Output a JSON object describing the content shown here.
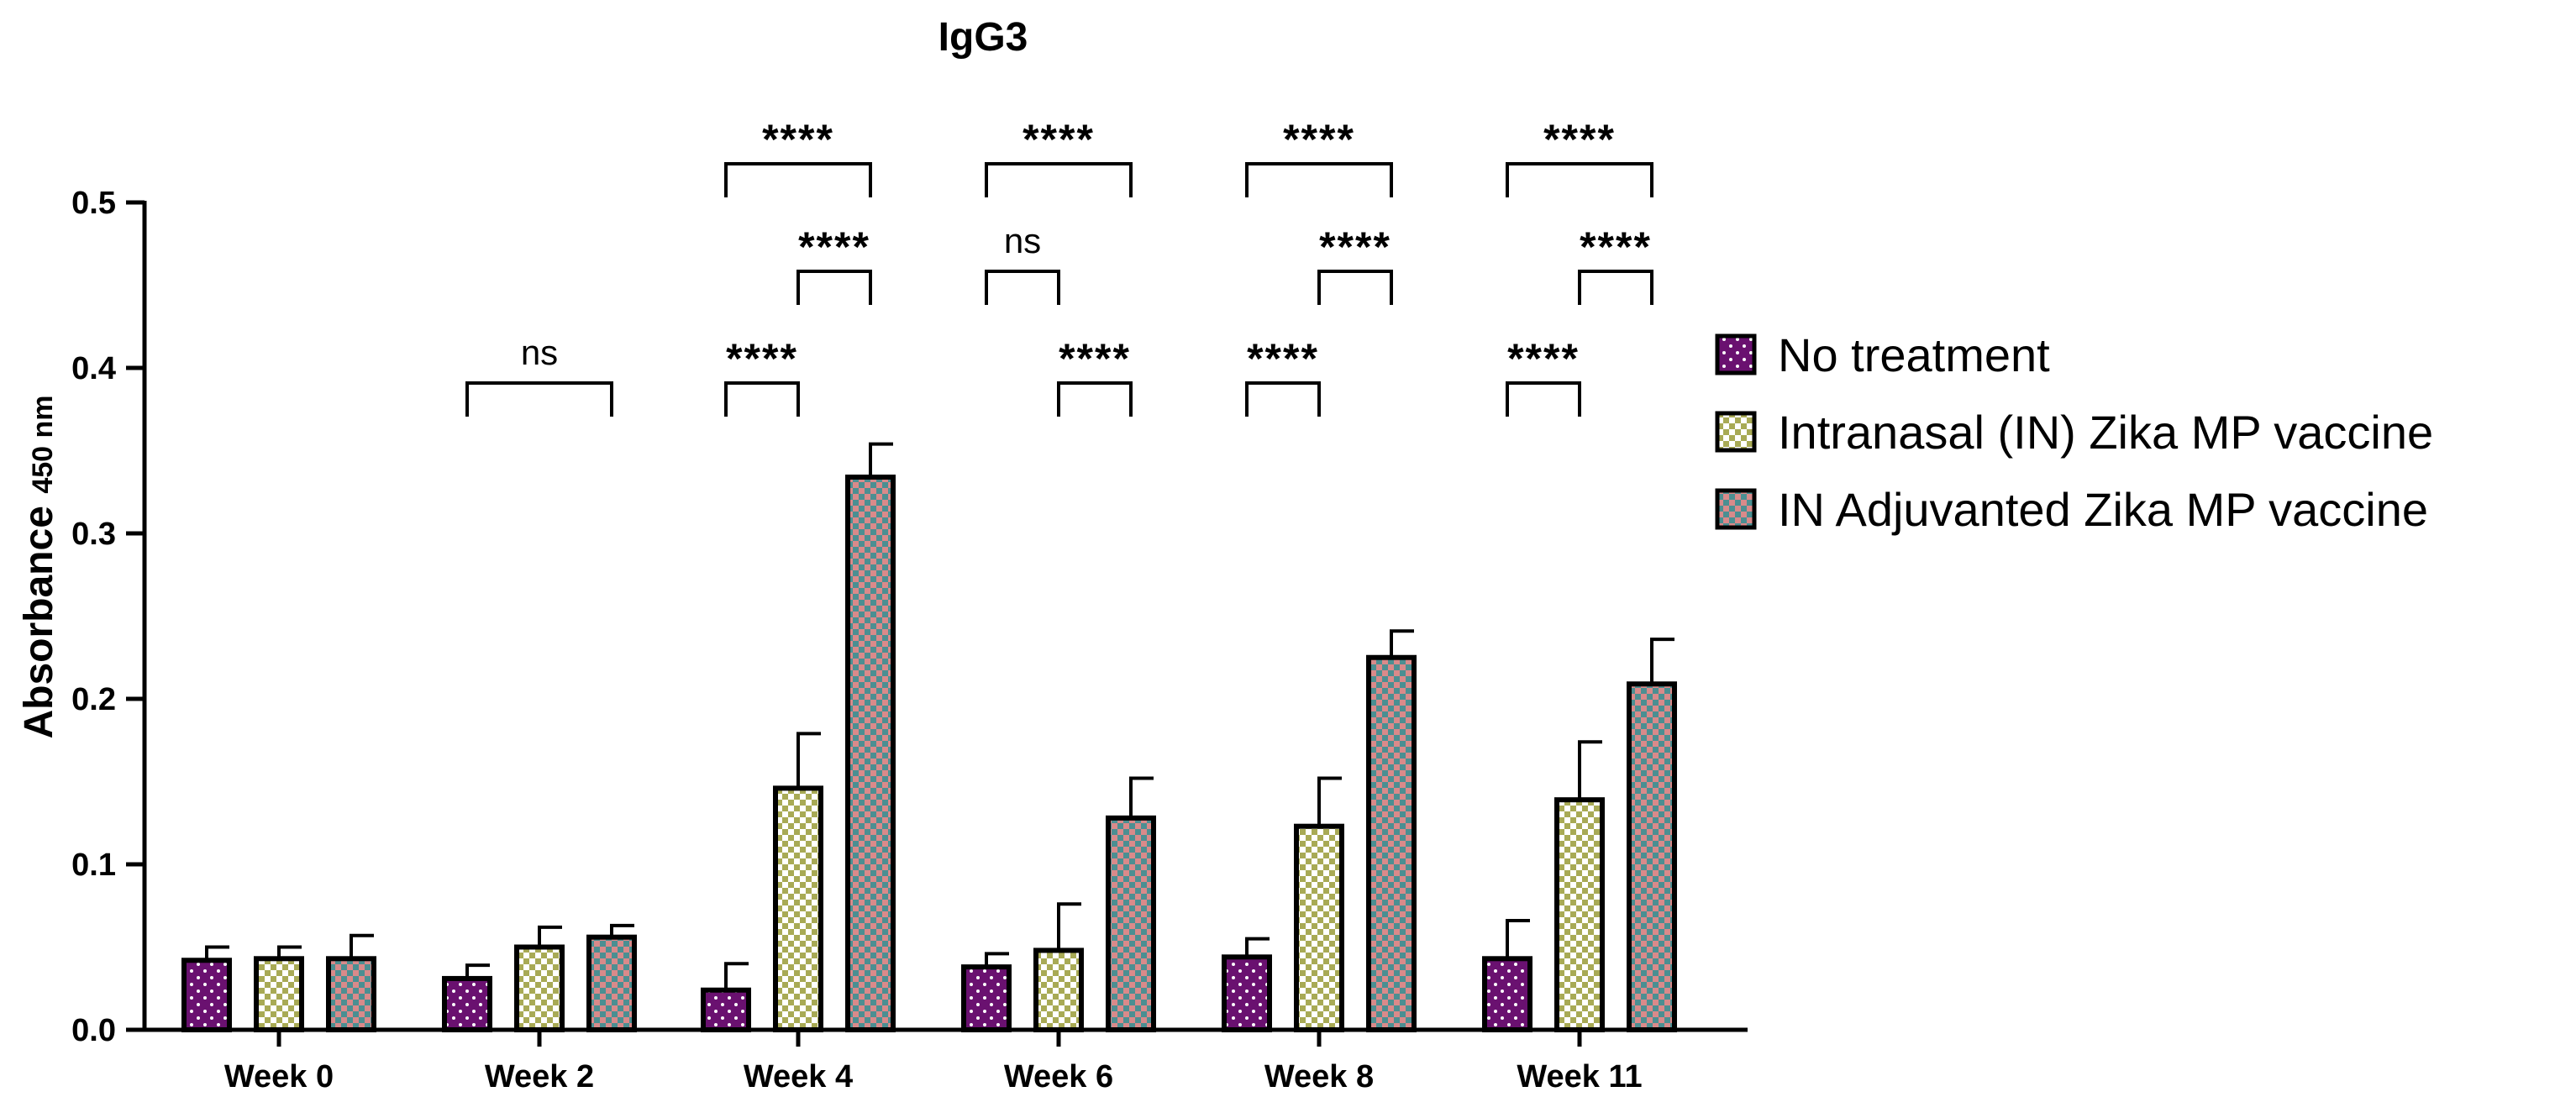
{
  "chart_data": {
    "type": "bar",
    "title": "IgG3",
    "ylabel": "Absorbance",
    "ylabel_subscript": "450 nm",
    "xlabel": "",
    "ylim": [
      0,
      0.5
    ],
    "yticks": [
      "0.0",
      "0.1",
      "0.2",
      "0.3",
      "0.4",
      "0.5"
    ],
    "categories": [
      "Week 0",
      "Week 2",
      "Week 4",
      "Week 6",
      "Week 8",
      "Week 11"
    ],
    "series": [
      {
        "name": "No treatment",
        "pattern": "dots",
        "color": "#6a1170",
        "values": [
          0.042,
          0.031,
          0.024,
          0.038,
          0.044,
          0.043
        ],
        "errors": [
          0.008,
          0.008,
          0.016,
          0.008,
          0.011,
          0.023
        ]
      },
      {
        "name": "Intranasal (IN) Zika MP vaccine",
        "pattern": "checker",
        "color": "#a8aa55",
        "values": [
          0.043,
          0.05,
          0.146,
          0.048,
          0.123,
          0.139
        ],
        "errors": [
          0.007,
          0.012,
          0.033,
          0.028,
          0.029,
          0.035
        ]
      },
      {
        "name": "IN Adjuvanted Zika MP vaccine",
        "pattern": "checker",
        "color": "#4b8f92",
        "values": [
          0.043,
          0.056,
          0.334,
          0.128,
          0.225,
          0.209
        ],
        "errors": [
          0.014,
          0.007,
          0.02,
          0.024,
          0.016,
          0.027
        ]
      }
    ],
    "significance": [
      {
        "category": 1,
        "from": 0,
        "to": 2,
        "label": "ns",
        "level": 1
      },
      {
        "category": 2,
        "from": 0,
        "to": 1,
        "label": "****",
        "level": 1
      },
      {
        "category": 2,
        "from": 1,
        "to": 2,
        "label": "****",
        "level": 2
      },
      {
        "category": 2,
        "from": 0,
        "to": 2,
        "label": "****",
        "level": 3
      },
      {
        "category": 3,
        "from": 1,
        "to": 2,
        "label": "****",
        "level": 1
      },
      {
        "category": 3,
        "from": 0,
        "to": 1,
        "label": "ns",
        "level": 2
      },
      {
        "category": 3,
        "from": 0,
        "to": 2,
        "label": "****",
        "level": 3
      },
      {
        "category": 4,
        "from": 0,
        "to": 1,
        "label": "****",
        "level": 1
      },
      {
        "category": 4,
        "from": 1,
        "to": 2,
        "label": "****",
        "level": 2
      },
      {
        "category": 4,
        "from": 0,
        "to": 2,
        "label": "****",
        "level": 3
      },
      {
        "category": 5,
        "from": 0,
        "to": 1,
        "label": "****",
        "level": 1
      },
      {
        "category": 5,
        "from": 1,
        "to": 2,
        "label": "****",
        "level": 2
      },
      {
        "category": 5,
        "from": 0,
        "to": 2,
        "label": "****",
        "level": 3
      }
    ],
    "legend_position": "right"
  }
}
